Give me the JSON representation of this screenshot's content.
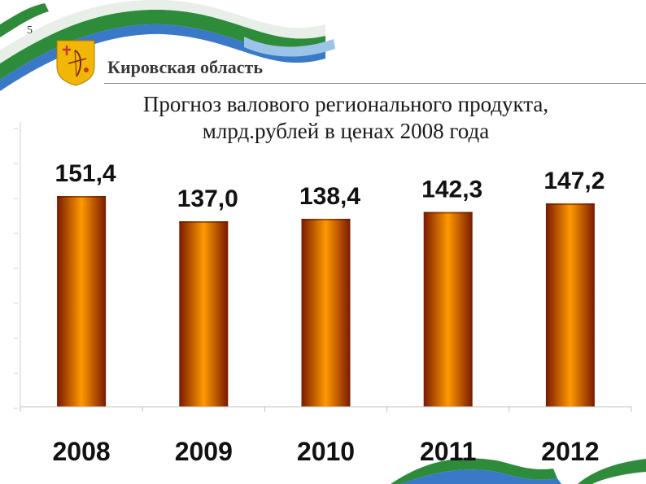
{
  "slide": {
    "number": "5",
    "region": "Кировская область",
    "title_line1": "Прогноз валового регионального продукта,",
    "title_line2": "млрд.рублей в ценах 2008 года"
  },
  "colors": {
    "bar_center": "#ff9900",
    "bar_edge": "#7a1a00",
    "ribbon_white": "#ffffff",
    "ribbon_green": "#2e8b3a",
    "ribbon_blue": "#3a78c8"
  },
  "icons": {
    "coat_of_arms": "kirov-coat-of-arms-icon",
    "ribbon": "flag-ribbon-icon"
  },
  "chart_data": {
    "type": "bar",
    "title": "Прогноз валового регионального продукта, млрд.рублей в ценах 2008 года",
    "categories": [
      "2008",
      "2009",
      "2010",
      "2011",
      "2012"
    ],
    "values": [
      151.4,
      137.0,
      138.4,
      142.3,
      147.2
    ],
    "value_labels": [
      "151,4",
      "137,0",
      "138,4",
      "142,3",
      "147,2"
    ],
    "xlabel": "",
    "ylabel": "",
    "ylim": [
      0,
      160
    ],
    "grid": false,
    "legend": "none"
  }
}
